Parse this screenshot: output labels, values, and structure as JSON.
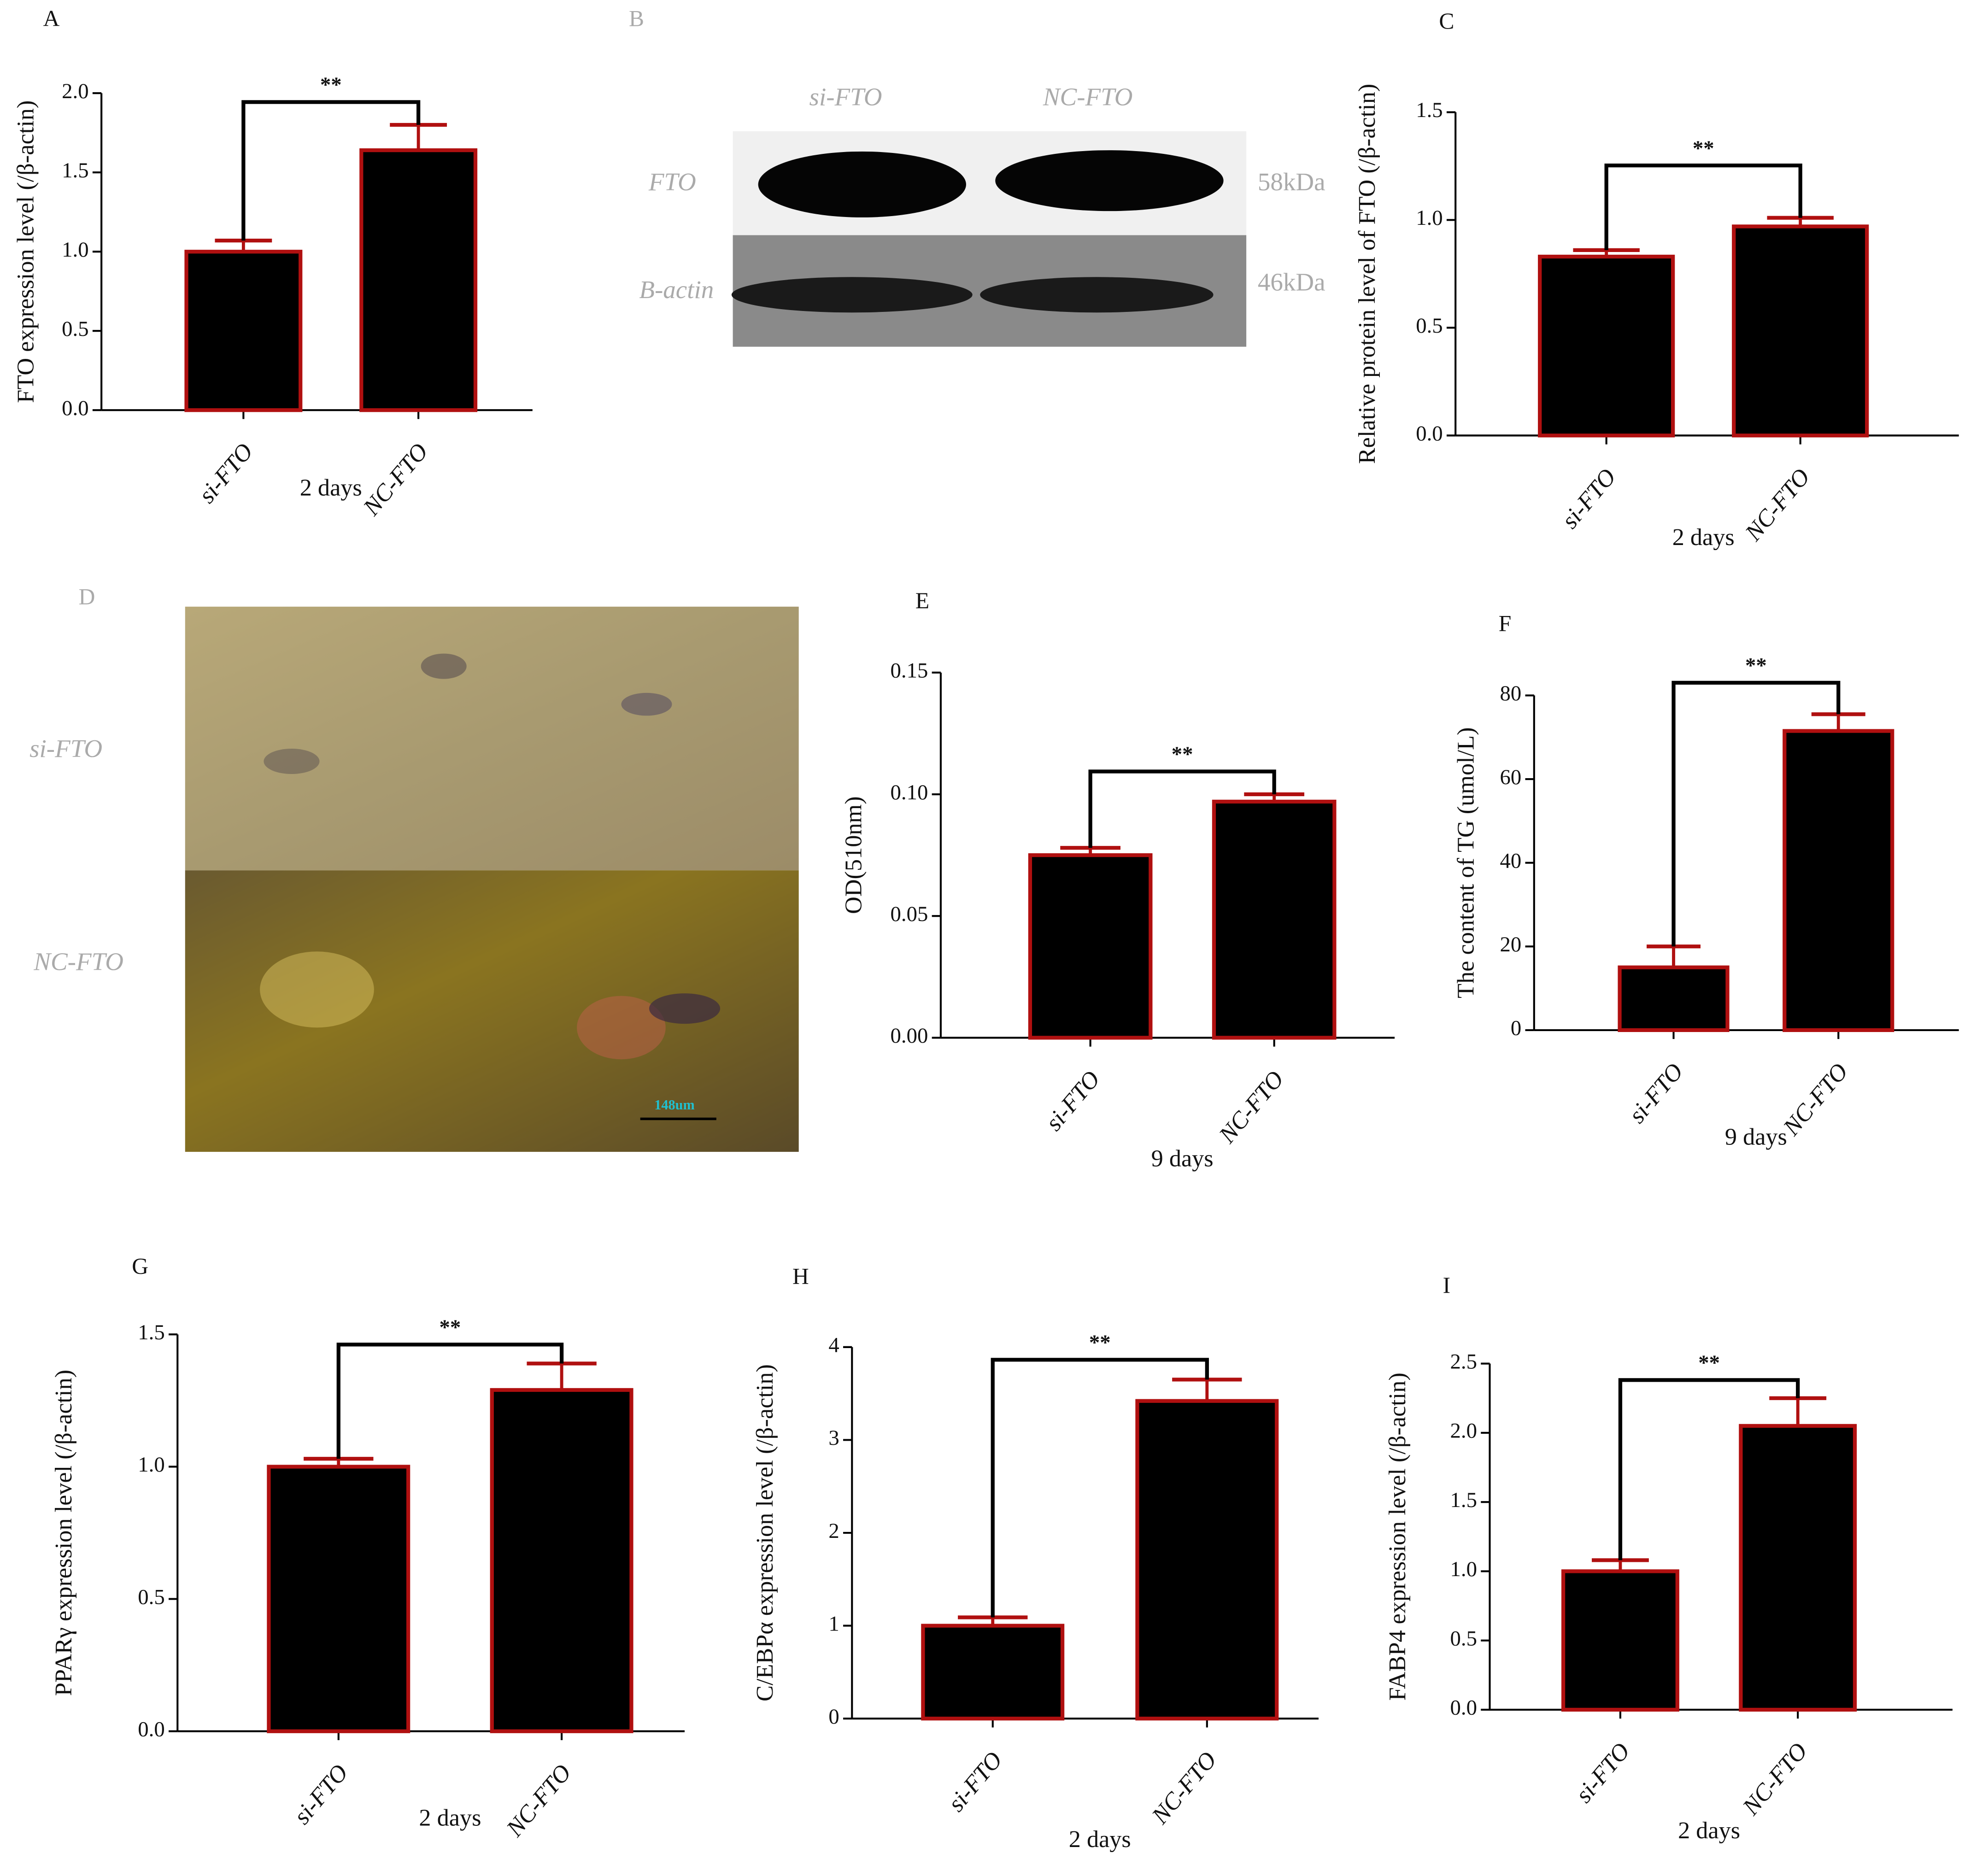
{
  "chart_data": [
    {
      "type": "bar",
      "panel": "A",
      "ylabel": "FTO expression level (/β-actin)",
      "xlabel": "2 days",
      "categories": [
        "si-FTO",
        "NC-FTO"
      ],
      "values": [
        1.0,
        1.64
      ],
      "errors": [
        0.07,
        0.16
      ],
      "significance": "**",
      "color": "#000000",
      "edge_color": "#b01010",
      "ylim": [
        0,
        2.0
      ],
      "yticks": [
        {
          "value": 0,
          "label": "0.0"
        },
        0.5,
        {
          "value": 1,
          "label": "1.0"
        },
        1.5,
        {
          "value": 2,
          "label": "2.0"
        }
      ]
    },
    {
      "type": "bar",
      "panel": "C",
      "ylabel": "Relative protein level of FTO (/β-actin)",
      "xlabel": "2 days",
      "categories": [
        "si-FTO",
        "NC-FTO"
      ],
      "values": [
        0.83,
        0.97
      ],
      "errors": [
        0.03,
        0.04
      ],
      "significance": "**",
      "color": "#000000",
      "edge_color": "#b01010",
      "ylim": [
        0,
        1.5
      ],
      "yticks": [
        {
          "value": 0,
          "label": "0.0"
        },
        0.5,
        {
          "value": 1,
          "label": "1.0"
        },
        1.5
      ]
    },
    {
      "type": "bar",
      "panel": "E",
      "ylabel": "OD(510nm)",
      "xlabel": "9 days",
      "categories": [
        "si-FTO",
        "NC-FTO"
      ],
      "values": [
        0.075,
        0.097
      ],
      "errors": [
        0.003,
        0.003
      ],
      "significance": "**",
      "color": "#000000",
      "edge_color": "#b01010",
      "ylim": [
        0,
        0.15
      ],
      "yticks": [
        {
          "value": 0,
          "label": "0.00"
        },
        0.05,
        {
          "value": 0.1,
          "label": "0.10"
        },
        0.15
      ]
    },
    {
      "type": "bar",
      "panel": "F",
      "ylabel": "The content of TG (umol/L)",
      "xlabel": "9 days",
      "categories": [
        "si-FTO",
        "NC-FTO"
      ],
      "values": [
        15,
        71.5
      ],
      "errors": [
        5,
        4
      ],
      "significance": "**",
      "color": "#000000",
      "edge_color": "#b01010",
      "ylim": [
        0,
        80
      ],
      "yticks": [
        0,
        20,
        40,
        60,
        80
      ]
    },
    {
      "type": "bar",
      "panel": "G",
      "ylabel": "PPARγ expression level (/β-actin)",
      "xlabel": "2 days",
      "categories": [
        "si-FTO",
        "NC-FTO"
      ],
      "values": [
        1.0,
        1.29
      ],
      "errors": [
        0.03,
        0.1
      ],
      "significance": "**",
      "color": "#000000",
      "edge_color": "#b01010",
      "ylim": [
        0,
        1.5
      ],
      "yticks": [
        {
          "value": 0,
          "label": "0.0"
        },
        0.5,
        {
          "value": 1,
          "label": "1.0"
        },
        1.5
      ]
    },
    {
      "type": "bar",
      "panel": "H",
      "ylabel": "C/EBPα expression level (/β-actin)",
      "xlabel": "2 days",
      "categories": [
        "si-FTO",
        "NC-FTO"
      ],
      "values": [
        1.0,
        3.42
      ],
      "errors": [
        0.09,
        0.23
      ],
      "significance": "**",
      "color": "#000000",
      "edge_color": "#b01010",
      "ylim": [
        0,
        4
      ],
      "yticks": [
        0,
        1,
        2,
        3,
        4
      ]
    },
    {
      "type": "bar",
      "panel": "I",
      "ylabel": "FABP4 expression level (/β-actin)",
      "xlabel": "2 days",
      "categories": [
        "si-FTO",
        "NC-FTO"
      ],
      "values": [
        1.0,
        2.05
      ],
      "errors": [
        0.08,
        0.2
      ],
      "significance": "**",
      "color": "#000000",
      "edge_color": "#b01010",
      "ylim": [
        0,
        2.5
      ],
      "yticks": [
        {
          "value": 0,
          "label": "0.0"
        },
        0.5,
        {
          "value": 1,
          "label": "1.0"
        },
        1.5,
        {
          "value": 2,
          "label": "2.0"
        },
        2.5
      ]
    }
  ],
  "blot": {
    "panel": "B",
    "lanes": [
      "si-FTO",
      "NC-FTO"
    ],
    "rows": [
      "FTO",
      "B-actin"
    ],
    "sizes": [
      "58kDa",
      "46kDa"
    ]
  },
  "micrograph": {
    "panel": "D",
    "rows": [
      "si-FTO",
      "NC-FTO"
    ],
    "scale": "148um"
  }
}
